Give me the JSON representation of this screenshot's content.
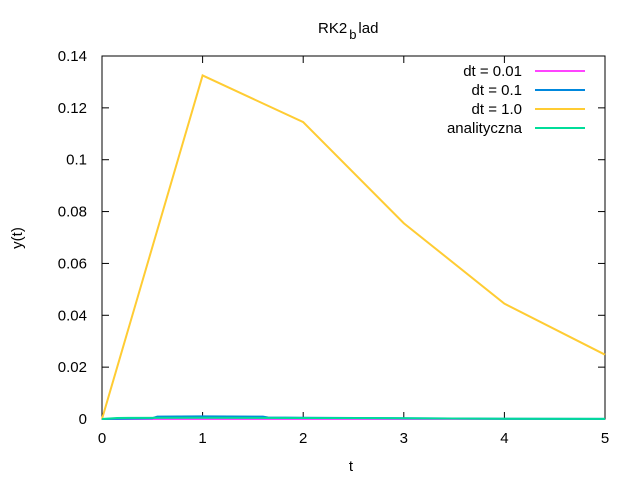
{
  "chart_data": {
    "type": "line",
    "title": "RK2 b lad",
    "title_main": "RK2",
    "title_sub": "b",
    "title_rest": "lad",
    "xlabel": "t",
    "ylabel": "y(t)",
    "xlim": [
      0,
      5
    ],
    "ylim": [
      0,
      0.14
    ],
    "x_ticks": [
      "0",
      "1",
      "2",
      "3",
      "4",
      "5"
    ],
    "y_ticks": [
      "0",
      "0.02",
      "0.04",
      "0.06",
      "0.08",
      "0.1",
      "0.12",
      "0.14"
    ],
    "grid": false,
    "legend_position": "top-right",
    "series": [
      {
        "name": "dt = 0.01",
        "color": "#ff44ff",
        "x": [
          0,
          5
        ],
        "y": [
          0,
          0
        ]
      },
      {
        "name": "dt = 0.1",
        "color": "#0088dd",
        "x": [
          0,
          0.5,
          0.55,
          1.0,
          1.6,
          1.65,
          2.0,
          3.0,
          3.5,
          4.0,
          5.0
        ],
        "y": [
          0,
          0.0003,
          0.0009,
          0.001,
          0.0009,
          0.0006,
          0.0005,
          0.0003,
          0.0002,
          0.0001,
          5e-05
        ]
      },
      {
        "name": "dt = 1.0",
        "color": "#ffcc33",
        "x": [
          0,
          1,
          2,
          3,
          4,
          5
        ],
        "y": [
          0,
          0.1325,
          0.1145,
          0.0755,
          0.0445,
          0.0248
        ]
      },
      {
        "name": "analityczna",
        "color": "#00dd99",
        "x": [
          0,
          0.15,
          1,
          2,
          3,
          3.45,
          4,
          5
        ],
        "y": [
          0,
          0.0004,
          0.0005,
          0.0004,
          0.0003,
          0.0002,
          0.0001,
          5e-05
        ]
      }
    ]
  }
}
